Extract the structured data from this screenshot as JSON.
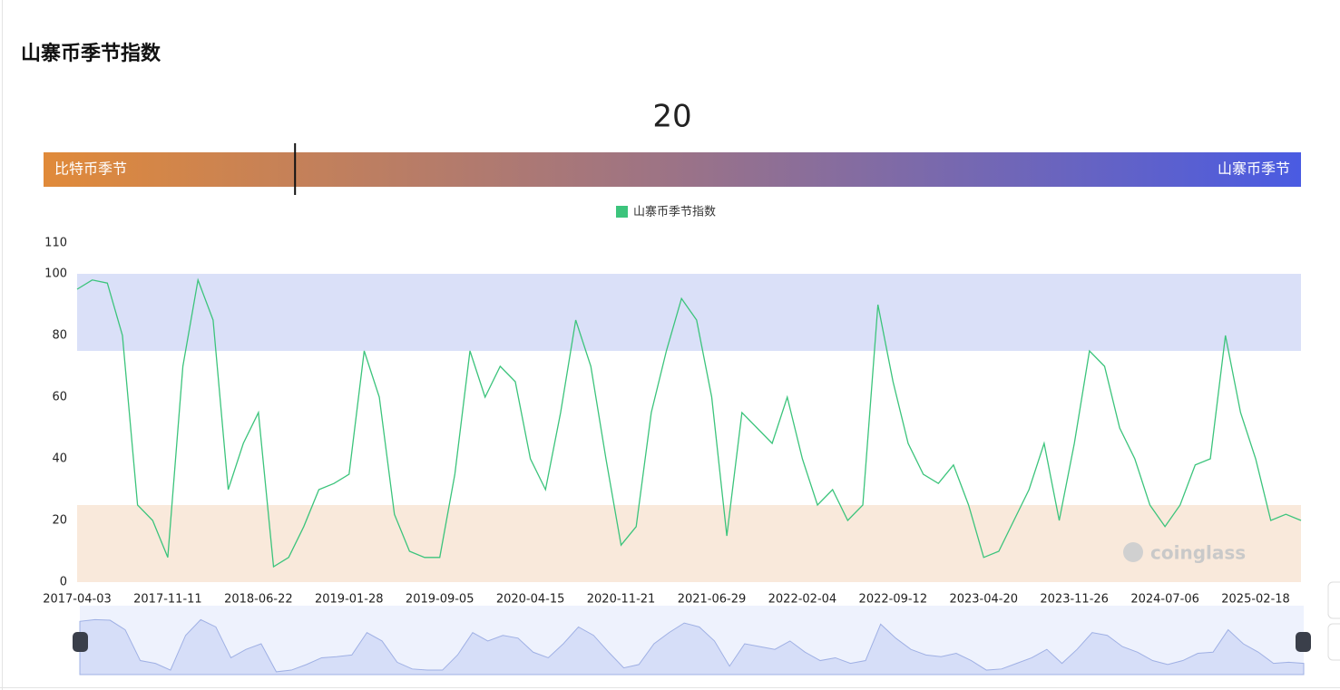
{
  "header": {
    "title": "山寨币季节指数"
  },
  "gauge": {
    "value": 20,
    "range": [
      0,
      100
    ],
    "min_label": "比特币季节",
    "max_label": "山寨币季节"
  },
  "chart_data": {
    "type": "line",
    "categories": [
      "2017-04-03",
      null,
      null,
      null,
      null,
      null,
      "2017-11-11",
      null,
      null,
      null,
      null,
      null,
      "2018-06-22",
      null,
      null,
      null,
      null,
      null,
      "2019-01-28",
      null,
      null,
      null,
      null,
      null,
      "2019-09-05",
      null,
      null,
      null,
      null,
      null,
      "2020-04-15",
      null,
      null,
      null,
      null,
      null,
      "2020-11-21",
      null,
      null,
      null,
      null,
      null,
      "2021-06-29",
      null,
      null,
      null,
      null,
      null,
      "2022-02-04",
      null,
      null,
      null,
      null,
      null,
      "2022-09-12",
      null,
      null,
      null,
      null,
      null,
      "2023-04-20",
      null,
      null,
      null,
      null,
      null,
      "2023-11-26",
      null,
      null,
      null,
      null,
      null,
      "2024-07-06",
      null,
      null,
      null,
      null,
      null,
      "2025-02-18",
      null,
      null,
      null
    ],
    "series": [
      {
        "name": "山寨币季节指数",
        "color": "#3cc47c",
        "values": [
          95,
          98,
          97,
          80,
          25,
          20,
          8,
          70,
          98,
          85,
          30,
          45,
          55,
          5,
          8,
          18,
          30,
          32,
          35,
          75,
          60,
          22,
          10,
          8,
          8,
          35,
          75,
          60,
          70,
          65,
          40,
          30,
          55,
          85,
          70,
          40,
          12,
          18,
          55,
          75,
          92,
          85,
          60,
          15,
          55,
          50,
          45,
          60,
          40,
          25,
          30,
          20,
          25,
          90,
          65,
          45,
          35,
          32,
          38,
          25,
          8,
          10,
          20,
          30,
          45,
          20,
          45,
          75,
          70,
          50,
          40,
          25,
          18,
          25,
          38,
          40,
          80,
          55,
          40,
          20,
          22,
          20
        ]
      }
    ],
    "ylim": [
      0,
      110
    ],
    "yticks": [
      0,
      20,
      40,
      60,
      80,
      100,
      110
    ],
    "bands": [
      {
        "from": 75,
        "to": 100,
        "color": "#dae0f8"
      },
      {
        "from": 0,
        "to": 25,
        "color": "#f9e9db"
      }
    ],
    "watermark": "coinglass"
  }
}
